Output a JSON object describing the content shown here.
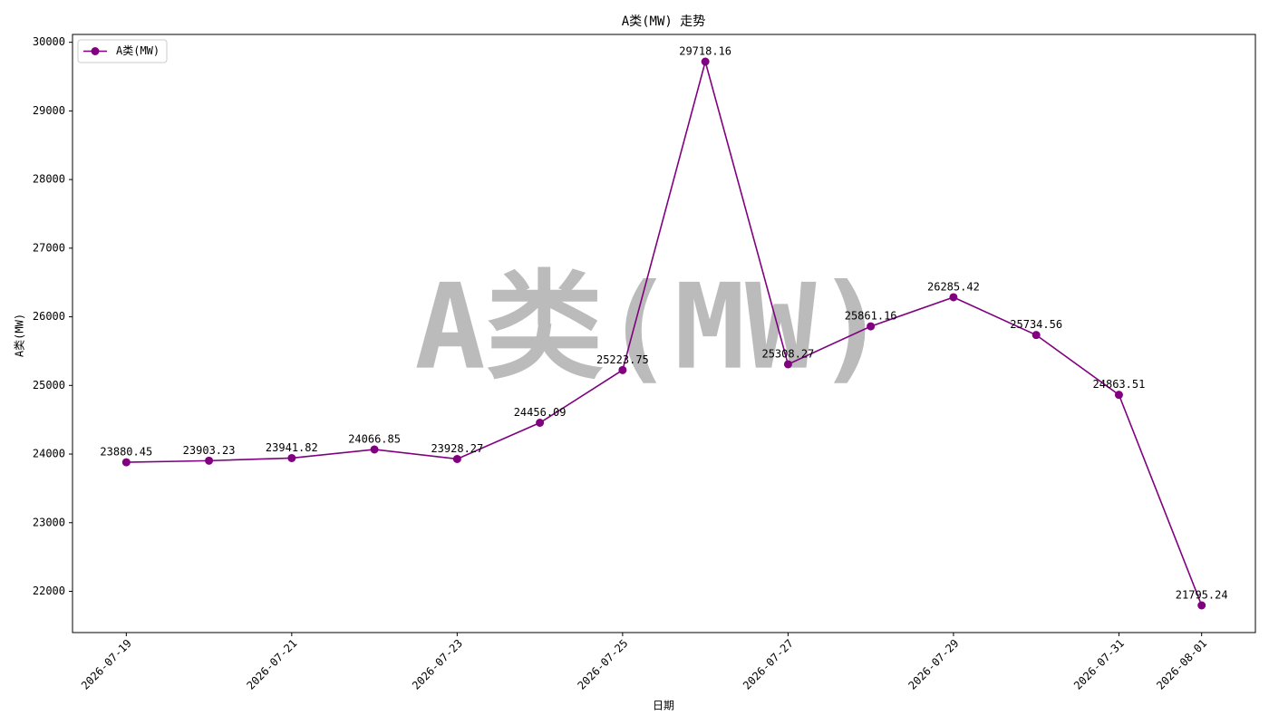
{
  "chart_data": {
    "type": "line",
    "title": "A类(MW) 走势",
    "xlabel": "日期",
    "ylabel": "A类(MW)",
    "watermark": "A类(MW)",
    "x": [
      "2026-07-19",
      "2026-07-20",
      "2026-07-21",
      "2026-07-22",
      "2026-07-23",
      "2026-07-24",
      "2026-07-25",
      "2026-07-26",
      "2026-07-27",
      "2026-07-28",
      "2026-07-29",
      "2026-07-30",
      "2026-07-31",
      "2026-08-01"
    ],
    "series": [
      {
        "name": "A类(MW)",
        "color": "#800080",
        "values": [
          23880.45,
          23903.23,
          23941.82,
          24066.85,
          23928.27,
          24456.09,
          25223.75,
          29718.16,
          25308.27,
          25861.16,
          26285.42,
          25734.56,
          24863.51,
          21795.24
        ]
      }
    ],
    "xticks": [
      "2026-07-19",
      "2026-07-21",
      "2026-07-23",
      "2026-07-25",
      "2026-07-27",
      "2026-07-29",
      "2026-07-31",
      "2026-08-01"
    ],
    "ylim": [
      21399.1,
      30114.3
    ],
    "yticks": [
      22000,
      23000,
      24000,
      25000,
      26000,
      27000,
      28000,
      29000,
      30000
    ],
    "grid": false,
    "legend": "upper left"
  }
}
